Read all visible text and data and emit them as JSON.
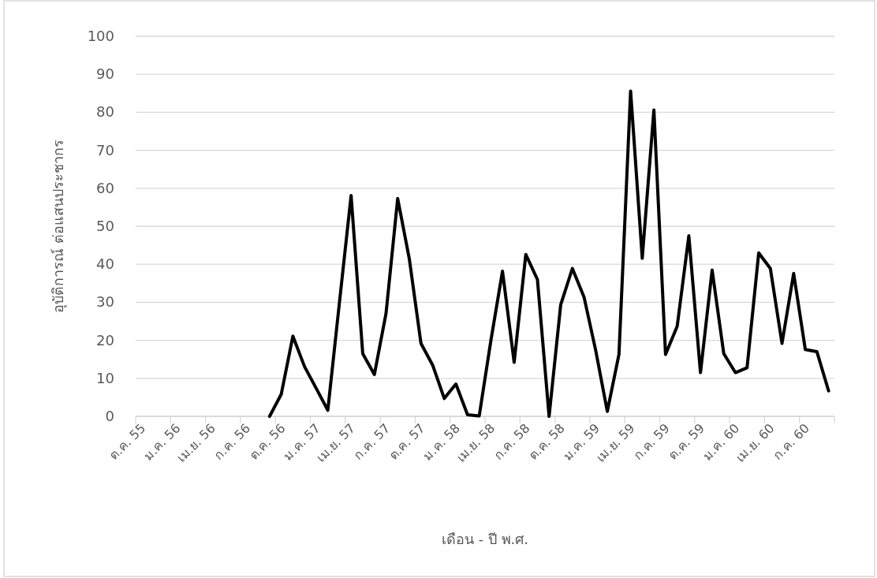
{
  "chart_data": {
    "type": "line",
    "xlabel": "เดือน - ปี พ.ศ.",
    "ylabel": "อุบัติการณ์ ต่อแสนประชากร",
    "categories": [
      "ต.ค. 55",
      null,
      null,
      "ม.ค. 56",
      null,
      null,
      "เม.ย. 56",
      null,
      null,
      "ก.ค. 56",
      null,
      null,
      "ต.ค. 56",
      null,
      null,
      "ม.ค. 57",
      null,
      null,
      "เม.ย. 57",
      null,
      null,
      "ก.ค. 57",
      null,
      null,
      "ต.ค. 57",
      null,
      null,
      "ม.ค. 58",
      null,
      null,
      "เม.ย. 58",
      null,
      null,
      "ก.ค. 58",
      null,
      null,
      "ต.ค. 58",
      null,
      null,
      "ม.ค. 59",
      null,
      null,
      "เม.ย. 59",
      null,
      null,
      "ก.ค. 59",
      null,
      null,
      "ต.ค. 59",
      null,
      null,
      "ม.ค. 60",
      null,
      null,
      "เม.ย. 60",
      null,
      null,
      "ก.ค. 60",
      null,
      null
    ],
    "series": [
      {
        "color": "#000000",
        "values": [
          null,
          null,
          null,
          null,
          null,
          null,
          null,
          null,
          null,
          null,
          null,
          0,
          5.8,
          21.1,
          13.1,
          7.4,
          1.6,
          30,
          58.1,
          16.5,
          11.0,
          27.1,
          57.3,
          41.4,
          19.2,
          13.5,
          4.7,
          8.5,
          0.4,
          0.1,
          19.9,
          38.2,
          14.2,
          42.6,
          36.0,
          0,
          29.4,
          38.9,
          31.4,
          17.4,
          1.3,
          16.3,
          85.6,
          41.6,
          80.6,
          16.3,
          23.7,
          47.5,
          11.5,
          38.5,
          16.5,
          11.5,
          12.8,
          43.0,
          38.9,
          19.2,
          37.6,
          17.6,
          17.0,
          6.7
        ]
      }
    ],
    "ylim": [
      0,
      100
    ],
    "yticks": [
      0,
      10,
      20,
      30,
      40,
      50,
      60,
      70,
      80,
      90,
      100
    ],
    "grid": "y"
  }
}
